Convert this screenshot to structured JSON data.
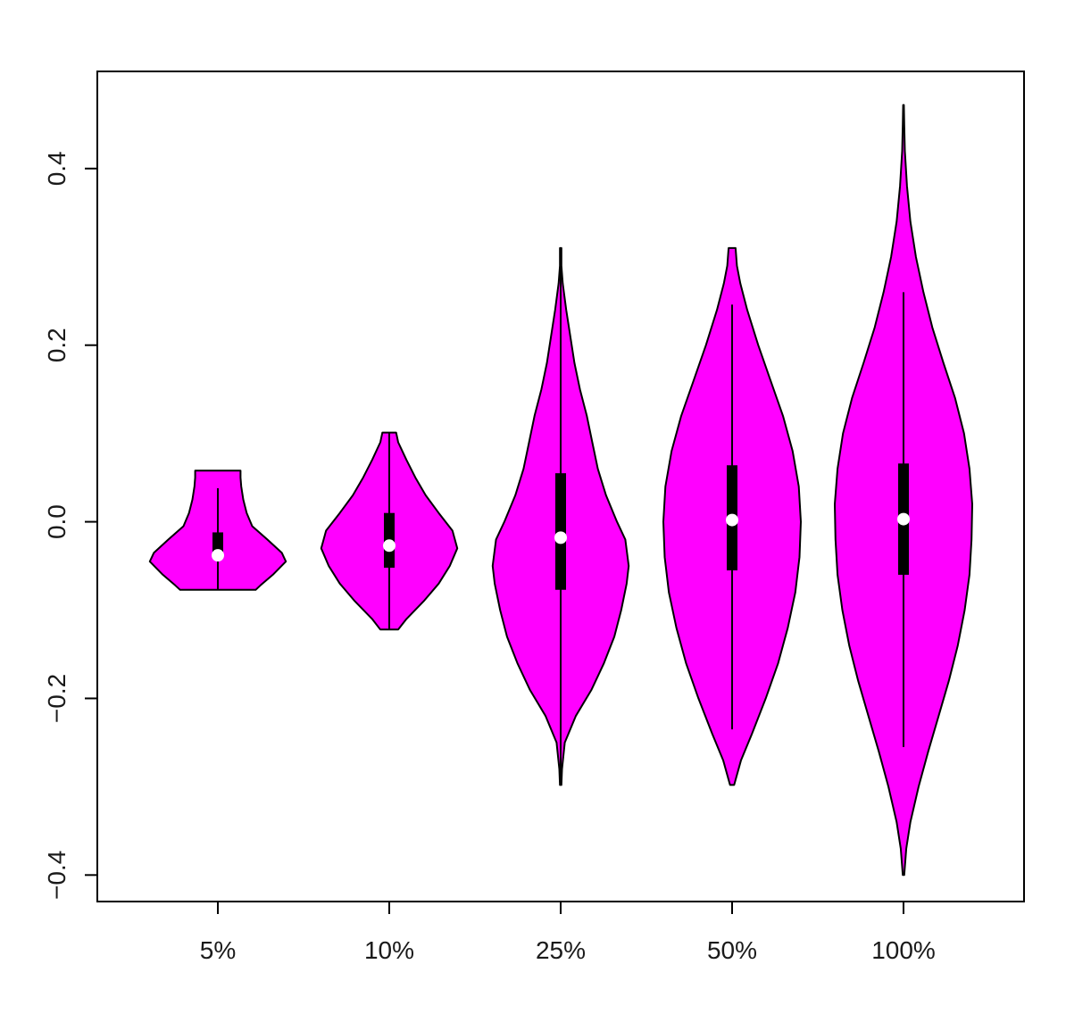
{
  "chart_data": {
    "type": "violin",
    "title": "",
    "xlabel": "",
    "ylabel": "",
    "ylim": [
      -0.43,
      0.51
    ],
    "yticks": [
      -0.4,
      -0.2,
      0.0,
      0.2,
      0.4
    ],
    "ytick_labels": [
      "−0.4",
      "−0.2",
      "0.0",
      "0.2",
      "0.4"
    ],
    "categories": [
      "5%",
      "10%",
      "25%",
      "50%",
      "100%"
    ],
    "fill_color": "#ff00ff",
    "box_color": "#000000",
    "median_color": "#ffffff",
    "grid": false,
    "legend": "none",
    "groups": [
      {
        "label": "5%",
        "min": -0.077,
        "q1": -0.04,
        "median": -0.038,
        "q3": -0.012,
        "max": 0.058,
        "whisker_low": -0.077,
        "whisker_high": 0.038,
        "density": [
          [
            -0.077,
            0.55
          ],
          [
            -0.072,
            0.62
          ],
          [
            -0.06,
            0.8
          ],
          [
            -0.045,
            0.99
          ],
          [
            -0.035,
            0.93
          ],
          [
            -0.02,
            0.72
          ],
          [
            -0.005,
            0.5
          ],
          [
            0.01,
            0.42
          ],
          [
            0.025,
            0.37
          ],
          [
            0.04,
            0.34
          ],
          [
            0.05,
            0.33
          ],
          [
            0.058,
            0.33
          ]
        ]
      },
      {
        "label": "10%",
        "min": -0.122,
        "q1": -0.052,
        "median": -0.027,
        "q3": 0.01,
        "max": 0.101,
        "whisker_low": -0.122,
        "whisker_high": 0.101,
        "density": [
          [
            -0.122,
            0.13
          ],
          [
            -0.11,
            0.25
          ],
          [
            -0.09,
            0.5
          ],
          [
            -0.07,
            0.72
          ],
          [
            -0.05,
            0.88
          ],
          [
            -0.03,
            0.99
          ],
          [
            -0.01,
            0.92
          ],
          [
            0.01,
            0.72
          ],
          [
            0.03,
            0.53
          ],
          [
            0.05,
            0.38
          ],
          [
            0.07,
            0.25
          ],
          [
            0.09,
            0.13
          ],
          [
            0.101,
            0.1
          ]
        ]
      },
      {
        "label": "25%",
        "min": -0.298,
        "q1": -0.077,
        "median": -0.018,
        "q3": 0.055,
        "max": 0.31,
        "whisker_low": -0.298,
        "whisker_high": 0.31,
        "density": [
          [
            -0.298,
            0.01
          ],
          [
            -0.28,
            0.02
          ],
          [
            -0.25,
            0.06
          ],
          [
            -0.22,
            0.22
          ],
          [
            -0.19,
            0.45
          ],
          [
            -0.16,
            0.63
          ],
          [
            -0.13,
            0.78
          ],
          [
            -0.1,
            0.88
          ],
          [
            -0.07,
            0.96
          ],
          [
            -0.05,
            0.99
          ],
          [
            -0.02,
            0.94
          ],
          [
            0.0,
            0.82
          ],
          [
            0.03,
            0.66
          ],
          [
            0.06,
            0.54
          ],
          [
            0.09,
            0.46
          ],
          [
            0.12,
            0.38
          ],
          [
            0.15,
            0.28
          ],
          [
            0.18,
            0.2
          ],
          [
            0.21,
            0.14
          ],
          [
            0.24,
            0.08
          ],
          [
            0.27,
            0.03
          ],
          [
            0.29,
            0.01
          ],
          [
            0.31,
            0.01
          ]
        ]
      },
      {
        "label": "50%",
        "min": -0.298,
        "q1": -0.055,
        "median": 0.002,
        "q3": 0.064,
        "max": 0.31,
        "whisker_low": -0.235,
        "whisker_high": 0.246,
        "density": [
          [
            -0.298,
            0.03
          ],
          [
            -0.27,
            0.13
          ],
          [
            -0.24,
            0.29
          ],
          [
            -0.2,
            0.49
          ],
          [
            -0.16,
            0.67
          ],
          [
            -0.12,
            0.81
          ],
          [
            -0.08,
            0.92
          ],
          [
            -0.04,
            0.98
          ],
          [
            0.0,
            1.0
          ],
          [
            0.04,
            0.97
          ],
          [
            0.08,
            0.88
          ],
          [
            0.12,
            0.74
          ],
          [
            0.16,
            0.56
          ],
          [
            0.2,
            0.38
          ],
          [
            0.24,
            0.22
          ],
          [
            0.27,
            0.12
          ],
          [
            0.29,
            0.07
          ],
          [
            0.31,
            0.05
          ]
        ]
      },
      {
        "label": "100%",
        "min": -0.4,
        "q1": -0.06,
        "median": 0.003,
        "q3": 0.066,
        "max": 0.472,
        "whisker_low": -0.255,
        "whisker_high": 0.26,
        "density": [
          [
            -0.4,
            0.01
          ],
          [
            -0.37,
            0.04
          ],
          [
            -0.34,
            0.1
          ],
          [
            -0.3,
            0.22
          ],
          [
            -0.26,
            0.36
          ],
          [
            -0.22,
            0.51
          ],
          [
            -0.18,
            0.66
          ],
          [
            -0.14,
            0.79
          ],
          [
            -0.1,
            0.89
          ],
          [
            -0.06,
            0.96
          ],
          [
            -0.02,
            0.99
          ],
          [
            0.02,
            1.0
          ],
          [
            0.06,
            0.96
          ],
          [
            0.1,
            0.88
          ],
          [
            0.14,
            0.75
          ],
          [
            0.18,
            0.58
          ],
          [
            0.22,
            0.42
          ],
          [
            0.26,
            0.29
          ],
          [
            0.3,
            0.18
          ],
          [
            0.34,
            0.1
          ],
          [
            0.38,
            0.05
          ],
          [
            0.42,
            0.02
          ],
          [
            0.45,
            0.01
          ],
          [
            0.472,
            0.005
          ]
        ]
      }
    ]
  }
}
